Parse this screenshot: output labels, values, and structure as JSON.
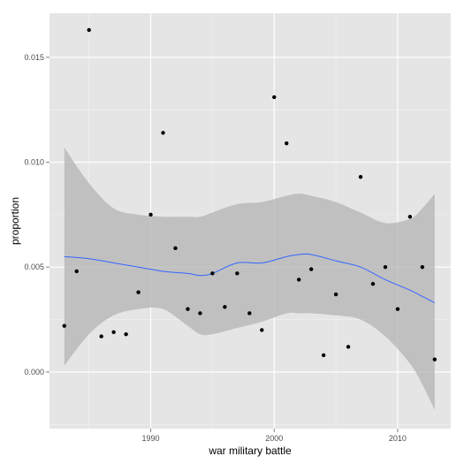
{
  "chart_data": {
    "type": "scatter",
    "xlabel": "war military battle",
    "ylabel": "proportion",
    "xlim": [
      1981.8,
      2014.3
    ],
    "ylim": [
      -0.0027,
      0.0171
    ],
    "x_ticks": [
      1990,
      2000,
      2010
    ],
    "x_tick_labels": [
      "1990",
      "2000",
      "2010"
    ],
    "y_ticks": [
      0.0,
      0.005,
      0.01,
      0.015
    ],
    "y_tick_labels": [
      "0.000",
      "0.005",
      "0.010",
      "0.015"
    ],
    "grid": true,
    "colors": {
      "panel_background": "#e5e5e5",
      "grid_major": "#ffffff",
      "grid_minor": "#f2f2f2",
      "points": "#000000",
      "smooth_line": "#3366ff",
      "confidence_band": "#b3b3b3"
    },
    "points": [
      {
        "x": 1983,
        "y": 0.0022
      },
      {
        "x": 1984,
        "y": 0.0048
      },
      {
        "x": 1985,
        "y": 0.0163
      },
      {
        "x": 1986,
        "y": 0.0017
      },
      {
        "x": 1987,
        "y": 0.0019
      },
      {
        "x": 1988,
        "y": 0.0018
      },
      {
        "x": 1989,
        "y": 0.0038
      },
      {
        "x": 1990,
        "y": 0.0075
      },
      {
        "x": 1991,
        "y": 0.0114
      },
      {
        "x": 1992,
        "y": 0.0059
      },
      {
        "x": 1993,
        "y": 0.003
      },
      {
        "x": 1994,
        "y": 0.0028
      },
      {
        "x": 1995,
        "y": 0.0047
      },
      {
        "x": 1996,
        "y": 0.0031
      },
      {
        "x": 1997,
        "y": 0.0047
      },
      {
        "x": 1998,
        "y": 0.0028
      },
      {
        "x": 1999,
        "y": 0.002
      },
      {
        "x": 2000,
        "y": 0.0131
      },
      {
        "x": 2001,
        "y": 0.0109
      },
      {
        "x": 2002,
        "y": 0.0044
      },
      {
        "x": 2003,
        "y": 0.0049
      },
      {
        "x": 2004,
        "y": 0.0008
      },
      {
        "x": 2005,
        "y": 0.0037
      },
      {
        "x": 2006,
        "y": 0.0012
      },
      {
        "x": 2007,
        "y": 0.0093
      },
      {
        "x": 2008,
        "y": 0.0042
      },
      {
        "x": 2009,
        "y": 0.005
      },
      {
        "x": 2010,
        "y": 0.003
      },
      {
        "x": 2011,
        "y": 0.0074
      },
      {
        "x": 2012,
        "y": 0.005
      },
      {
        "x": 2013,
        "y": 0.0006
      }
    ],
    "smooth": [
      {
        "x": 1983,
        "y": 0.0055,
        "ymin": 0.0003,
        "ymax": 0.0107
      },
      {
        "x": 1985,
        "y": 0.0054,
        "ymin": 0.0018,
        "ymax": 0.009
      },
      {
        "x": 1987,
        "y": 0.0052,
        "ymin": 0.0027,
        "ymax": 0.0078
      },
      {
        "x": 1989,
        "y": 0.005,
        "ymin": 0.003,
        "ymax": 0.0075
      },
      {
        "x": 1991,
        "y": 0.0048,
        "ymin": 0.003,
        "ymax": 0.0074
      },
      {
        "x": 1993,
        "y": 0.0047,
        "ymin": 0.0022,
        "ymax": 0.0074
      },
      {
        "x": 1994,
        "y": 0.0046,
        "ymin": 0.0018,
        "ymax": 0.0074
      },
      {
        "x": 1995,
        "y": 0.0047,
        "ymin": 0.0018,
        "ymax": 0.0076
      },
      {
        "x": 1997,
        "y": 0.0052,
        "ymin": 0.0021,
        "ymax": 0.008
      },
      {
        "x": 1999,
        "y": 0.0052,
        "ymin": 0.0024,
        "ymax": 0.0081
      },
      {
        "x": 2001,
        "y": 0.0055,
        "ymin": 0.0028,
        "ymax": 0.0084
      },
      {
        "x": 2002,
        "y": 0.0056,
        "ymin": 0.0028,
        "ymax": 0.0085
      },
      {
        "x": 2003,
        "y": 0.0056,
        "ymin": 0.0028,
        "ymax": 0.0084
      },
      {
        "x": 2005,
        "y": 0.0053,
        "ymin": 0.0027,
        "ymax": 0.0081
      },
      {
        "x": 2007,
        "y": 0.005,
        "ymin": 0.0025,
        "ymax": 0.0076
      },
      {
        "x": 2009,
        "y": 0.0044,
        "ymin": 0.0017,
        "ymax": 0.0071
      },
      {
        "x": 2011,
        "y": 0.0039,
        "ymin": 0.0004,
        "ymax": 0.0073
      },
      {
        "x": 2012,
        "y": 0.0036,
        "ymin": -0.0006,
        "ymax": 0.0078
      },
      {
        "x": 2013,
        "y": 0.0033,
        "ymin": -0.0018,
        "ymax": 0.0085
      }
    ]
  }
}
